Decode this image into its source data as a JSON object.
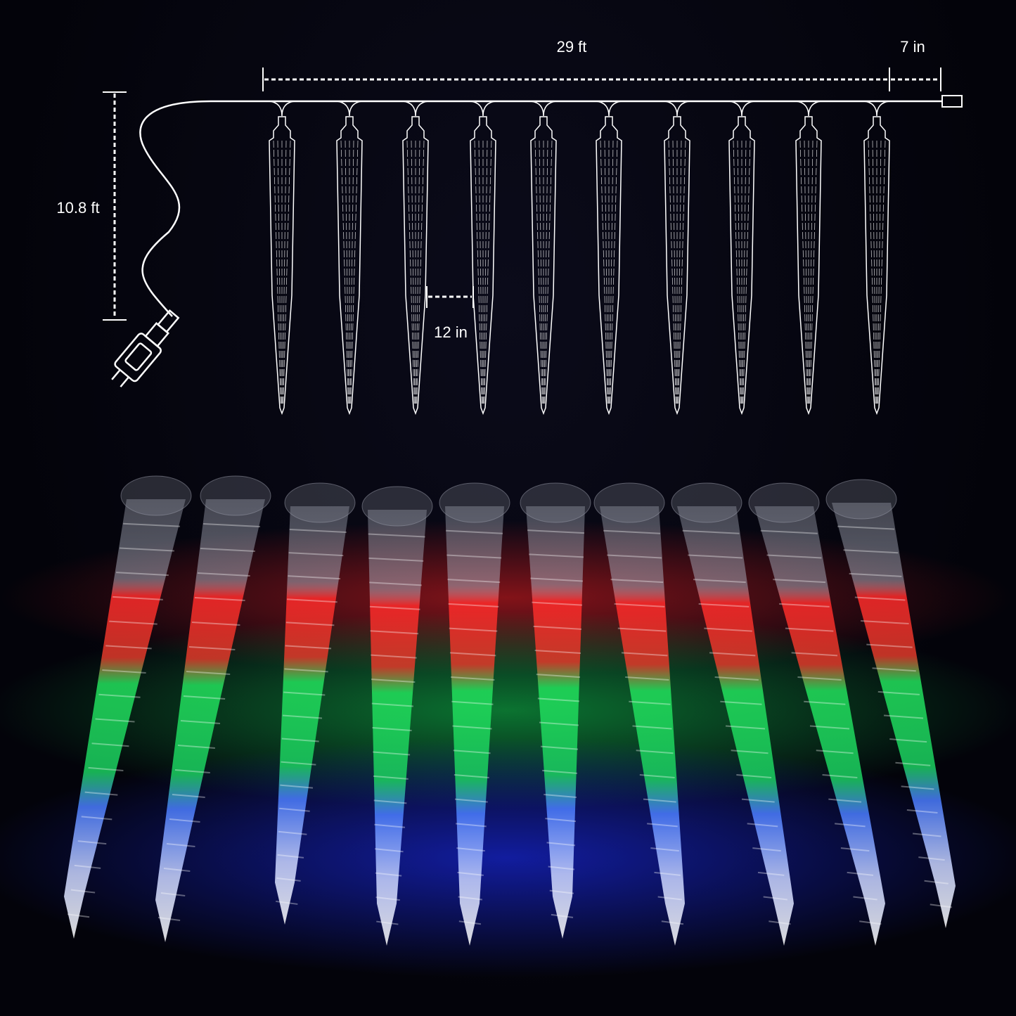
{
  "dimensions": {
    "total_length": "29 ft",
    "end_lead": "7 in",
    "lead_cable": "10.8 ft",
    "spacing": "12 in"
  },
  "icicle_count": 10,
  "colors": {
    "background": "#02020a",
    "line": "#ffffff",
    "red": "#ff2a2a",
    "green": "#1fe05a",
    "blue": "#2a3cff",
    "white": "#dfe6ff"
  }
}
